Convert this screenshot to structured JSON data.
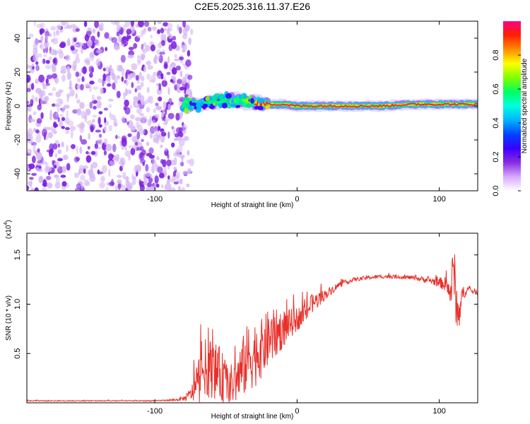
{
  "figure_title": "C2E5.2025.316.11.37.E26",
  "colors": {
    "noise": "#7b1fe0",
    "noise_light": "#d6b8f5",
    "line": "#e8302a",
    "frame": "#000000"
  },
  "chart_data": [
    {
      "type": "heatmap",
      "title": "C2E5.2025.316.11.37.E26",
      "xlabel": "Height of straight line (km)",
      "ylabel": "Frequency (Hz)",
      "xlim": [
        -190,
        127
      ],
      "ylim": [
        -50,
        50
      ],
      "xticks": [
        -100,
        0,
        100
      ],
      "xtick_labels": [
        "-100",
        "0",
        "100"
      ],
      "yticks": [
        -40,
        -20,
        0,
        20,
        40
      ],
      "ytick_labels": [
        "-40",
        "-20",
        "0",
        "20",
        "40"
      ],
      "noise_region_x": [
        -190,
        -78
      ],
      "ridge": {
        "start_x": -80,
        "end_x": 127,
        "center_freq_x": [
          -80,
          -70,
          -60,
          -50,
          -40,
          -30,
          -20,
          -10,
          0,
          20,
          40,
          60,
          80,
          100,
          127
        ],
        "center_freq_y": [
          0,
          1,
          2,
          4,
          3,
          2,
          1,
          1,
          0,
          0,
          0,
          0,
          1,
          1,
          1
        ]
      },
      "colorbar": {
        "label": "Normalized spectral amplitude",
        "range": [
          0,
          1
        ],
        "ticks": [
          0.0,
          0.2,
          0.4,
          0.6,
          0.8
        ],
        "tick_labels": [
          "0.0",
          "0.2",
          "0.4",
          "0.6",
          "0.8"
        ],
        "colormap": [
          "#ffffff",
          "#d8a8ff",
          "#8a2be2",
          "#3a00ff",
          "#0044ff",
          "#00b4ff",
          "#00ffe0",
          "#00ff60",
          "#80ff00",
          "#ffff00",
          "#ff8c00",
          "#ff2000",
          "#ff0080"
        ]
      }
    },
    {
      "type": "line",
      "xlabel": "Height of straight line (km)",
      "ylabel": "SNR (10 * v/v)",
      "multiplier_base": "(x10",
      "multiplier_exp": "4",
      "multiplier_close": ")",
      "xlim": [
        -190,
        127
      ],
      "ylim": [
        0,
        1.72
      ],
      "xticks": [
        -100,
        0,
        100
      ],
      "xtick_labels": [
        "-100",
        "0",
        "100"
      ],
      "yticks": [
        0.5,
        1.0,
        1.5
      ],
      "ytick_labels": [
        "0.5",
        "1.0",
        "1.5"
      ],
      "series": [
        {
          "name": "SNR",
          "x": [
            -190,
            -160,
            -130,
            -100,
            -85,
            -78,
            -74,
            -70,
            -65,
            -60,
            -55,
            -50,
            -45,
            -40,
            -35,
            -30,
            -25,
            -20,
            -15,
            -10,
            -5,
            0,
            5,
            10,
            15,
            20,
            25,
            30,
            40,
            50,
            60,
            70,
            80,
            90,
            100,
            105,
            108,
            110,
            112,
            114,
            116,
            120,
            127
          ],
          "y": [
            0.02,
            0.02,
            0.02,
            0.02,
            0.03,
            0.05,
            0.1,
            0.2,
            0.35,
            0.35,
            0.3,
            0.2,
            0.18,
            0.3,
            0.45,
            0.5,
            0.55,
            0.65,
            0.7,
            0.75,
            0.8,
            0.85,
            0.9,
            1.0,
            1.05,
            1.1,
            1.15,
            1.2,
            1.25,
            1.27,
            1.28,
            1.28,
            1.27,
            1.25,
            1.22,
            1.2,
            1.1,
            1.4,
            1.0,
            0.9,
            1.1,
            1.15,
            1.12
          ],
          "noise_amplitude": [
            0.005,
            0.005,
            0.005,
            0.005,
            0.01,
            0.03,
            0.08,
            0.25,
            0.3,
            0.3,
            0.28,
            0.25,
            0.2,
            0.3,
            0.35,
            0.35,
            0.3,
            0.3,
            0.25,
            0.2,
            0.15,
            0.12,
            0.12,
            0.1,
            0.08,
            0.05,
            0.04,
            0.03,
            0.02,
            0.02,
            0.02,
            0.02,
            0.02,
            0.03,
            0.05,
            0.08,
            0.15,
            0.3,
            0.25,
            0.2,
            0.08,
            0.03,
            0.03
          ]
        }
      ]
    }
  ]
}
